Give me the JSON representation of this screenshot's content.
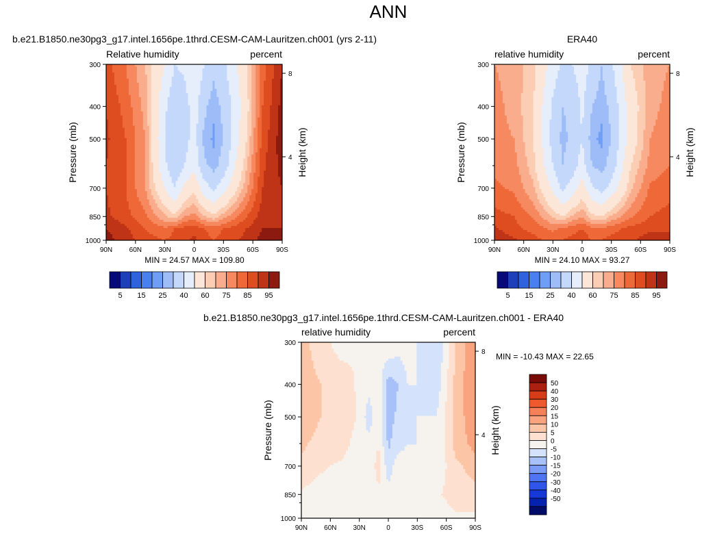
{
  "figure": {
    "title": "ANN",
    "colors": {
      "abs_palette": [
        "#050a78",
        "#1d3fb8",
        "#2f62dd",
        "#4a7ff0",
        "#6f9ef7",
        "#9dbcf8",
        "#c4d8fb",
        "#e6eefc",
        "#fce6d8",
        "#fbcdb2",
        "#f9ad8c",
        "#f6895f",
        "#ee6838",
        "#de4d20",
        "#bf3417",
        "#8c1a10"
      ],
      "diff_palette": [
        "#000b6a",
        "#0522ae",
        "#1638d6",
        "#2f56e8",
        "#4f75f2",
        "#7a9bf6",
        "#a8c1f8",
        "#d4e3fb",
        "#f6f2ee",
        "#fde0cf",
        "#fcc6a6",
        "#f9a47f",
        "#f68057",
        "#ee5a2d",
        "#d63c18",
        "#ab2010",
        "#7a0c08"
      ]
    },
    "colorbars": {
      "abs": {
        "labels": [
          "5",
          "15",
          "25",
          "40",
          "60",
          "75",
          "85",
          "95"
        ]
      },
      "diff": {
        "labels": [
          "50",
          "40",
          "30",
          "20",
          "15",
          "10",
          "5",
          "0",
          "-5",
          "-10",
          "-15",
          "-20",
          "-30",
          "-40",
          "-50"
        ]
      }
    }
  },
  "chart_data": [
    {
      "type": "heatmap",
      "title": "b.e21.B1850.ne30pg3_g17.intel.1656pe.1thrd.CESM-CAM-Lauritzen.ch001 (yrs 2-11)",
      "left_label": "Relative humidity",
      "right_label": "percent",
      "xlabel": "",
      "ylabel": "Pressure (mb)",
      "y2label": "Height (km)",
      "xticks": [
        "90N",
        "60N",
        "30N",
        "0",
        "30S",
        "60S",
        "90S"
      ],
      "yticks": [
        "300",
        "400",
        "500",
        "700",
        "850",
        "1000"
      ],
      "y2ticks": [
        "8",
        "4"
      ],
      "x_range": [
        90,
        -90
      ],
      "y_range": [
        1000,
        300
      ],
      "log_pressure": true,
      "stats": "MIN =  24.57   MAX = 109.80",
      "min": 24.57,
      "max": 109.8,
      "levels": [
        5,
        10,
        15,
        20,
        25,
        30,
        40,
        50,
        60,
        65,
        70,
        75,
        80,
        85,
        90,
        95
      ],
      "lat": [
        90,
        70,
        50,
        30,
        20,
        10,
        0,
        -10,
        -20,
        -30,
        -50,
        -70,
        -90
      ],
      "pressure": [
        300,
        400,
        500,
        600,
        700,
        850,
        925,
        1000
      ],
      "values": [
        [
          82,
          75,
          65,
          50,
          40,
          42,
          50,
          40,
          32,
          38,
          55,
          78,
          90
        ],
        [
          85,
          78,
          68,
          42,
          32,
          35,
          45,
          32,
          26,
          32,
          52,
          80,
          92
        ],
        [
          86,
          80,
          70,
          40,
          30,
          36,
          44,
          28,
          24,
          30,
          55,
          82,
          93
        ],
        [
          85,
          80,
          70,
          42,
          32,
          40,
          48,
          32,
          27,
          34,
          60,
          84,
          92
        ],
        [
          85,
          80,
          70,
          50,
          40,
          52,
          58,
          45,
          38,
          46,
          65,
          85,
          90
        ],
        [
          86,
          82,
          76,
          66,
          62,
          70,
          72,
          66,
          62,
          68,
          78,
          88,
          90
        ],
        [
          90,
          86,
          80,
          76,
          80,
          82,
          84,
          80,
          78,
          80,
          84,
          90,
          90
        ],
        [
          92,
          88,
          82,
          80,
          82,
          84,
          86,
          82,
          80,
          82,
          86,
          92,
          92
        ]
      ]
    },
    {
      "type": "heatmap",
      "title": "ERA40",
      "left_label": "relative humidity",
      "right_label": "percent",
      "xlabel": "",
      "ylabel": "Pressure (mb)",
      "y2label": "Height (km)",
      "xticks": [
        "90N",
        "60N",
        "30N",
        "0",
        "30S",
        "60S",
        "90S"
      ],
      "yticks": [
        "300",
        "400",
        "500",
        "700",
        "850",
        "1000"
      ],
      "y2ticks": [
        "8",
        "4"
      ],
      "x_range": [
        90,
        -90
      ],
      "y_range": [
        1000,
        300
      ],
      "log_pressure": true,
      "stats": "MIN =  24.10   MAX =  93.27",
      "min": 24.1,
      "max": 93.27,
      "levels": [
        5,
        10,
        15,
        20,
        25,
        30,
        40,
        50,
        60,
        65,
        70,
        75,
        80,
        85,
        90,
        95
      ],
      "lat": [
        90,
        70,
        50,
        30,
        20,
        10,
        0,
        -10,
        -20,
        -30,
        -50,
        -70,
        -90
      ],
      "pressure": [
        300,
        400,
        500,
        600,
        700,
        850,
        925,
        1000
      ],
      "values": [
        [
          70,
          68,
          62,
          45,
          38,
          40,
          45,
          38,
          30,
          38,
          60,
          68,
          70
        ],
        [
          72,
          68,
          60,
          38,
          30,
          32,
          42,
          30,
          26,
          32,
          55,
          68,
          72
        ],
        [
          72,
          70,
          60,
          36,
          28,
          32,
          40,
          26,
          24,
          30,
          55,
          70,
          74
        ],
        [
          74,
          72,
          62,
          40,
          30,
          35,
          45,
          30,
          27,
          34,
          60,
          72,
          75
        ],
        [
          76,
          74,
          66,
          48,
          38,
          45,
          55,
          42,
          36,
          44,
          64,
          76,
          78
        ],
        [
          82,
          80,
          74,
          64,
          60,
          66,
          70,
          62,
          60,
          66,
          74,
          80,
          82
        ],
        [
          86,
          82,
          78,
          74,
          76,
          78,
          80,
          76,
          76,
          78,
          82,
          84,
          84
        ],
        [
          88,
          86,
          82,
          78,
          80,
          82,
          84,
          80,
          80,
          82,
          84,
          88,
          88
        ]
      ]
    },
    {
      "type": "heatmap",
      "title": "b.e21.B1850.ne30pg3_g17.intel.1656pe.1thrd.CESM-CAM-Lauritzen.ch001 - ERA40",
      "left_label": "relative humidity",
      "right_label": "percent",
      "xlabel": "",
      "ylabel": "Pressure (mb)",
      "y2label": "Height (km)",
      "xticks": [
        "90N",
        "60N",
        "30N",
        "0",
        "30S",
        "60S",
        "90S"
      ],
      "yticks": [
        "300",
        "400",
        "500",
        "700",
        "850",
        "1000"
      ],
      "y2ticks": [
        "8",
        "4"
      ],
      "x_range": [
        90,
        -90
      ],
      "y_range": [
        1000,
        300
      ],
      "log_pressure": true,
      "stats": "MIN = -10.43   MAX =  22.65",
      "min": -10.43,
      "max": 22.65,
      "levels": [
        -50,
        -40,
        -30,
        -20,
        -15,
        -10,
        -5,
        0,
        5,
        10,
        15,
        20,
        30,
        40,
        50
      ],
      "lat": [
        90,
        70,
        50,
        30,
        20,
        10,
        0,
        -10,
        -20,
        -30,
        -50,
        -70,
        -90
      ],
      "pressure": [
        300,
        400,
        500,
        600,
        700,
        850,
        925,
        1000
      ],
      "values": [
        [
          12,
          7,
          3,
          5,
          2,
          2,
          5,
          2,
          2,
          0,
          -5,
          10,
          20
        ],
        [
          13,
          10,
          8,
          4,
          2,
          3,
          -8,
          -5,
          0,
          0,
          -3,
          12,
          20
        ],
        [
          14,
          10,
          10,
          4,
          -3,
          4,
          -7,
          -4,
          -2,
          0,
          0,
          12,
          19
        ],
        [
          11,
          8,
          8,
          2,
          2,
          5,
          -6,
          -2,
          0,
          0,
          0,
          12,
          17
        ],
        [
          9,
          6,
          4,
          2,
          2,
          7,
          -3,
          3,
          2,
          2,
          1,
          9,
          12
        ],
        [
          4,
          2,
          2,
          2,
          2,
          4,
          2,
          4,
          2,
          2,
          4,
          8,
          8
        ],
        [
          4,
          4,
          2,
          2,
          4,
          4,
          4,
          4,
          2,
          2,
          2,
          6,
          6
        ],
        [
          4,
          2,
          0,
          2,
          2,
          2,
          2,
          2,
          0,
          0,
          2,
          4,
          4
        ]
      ]
    }
  ]
}
